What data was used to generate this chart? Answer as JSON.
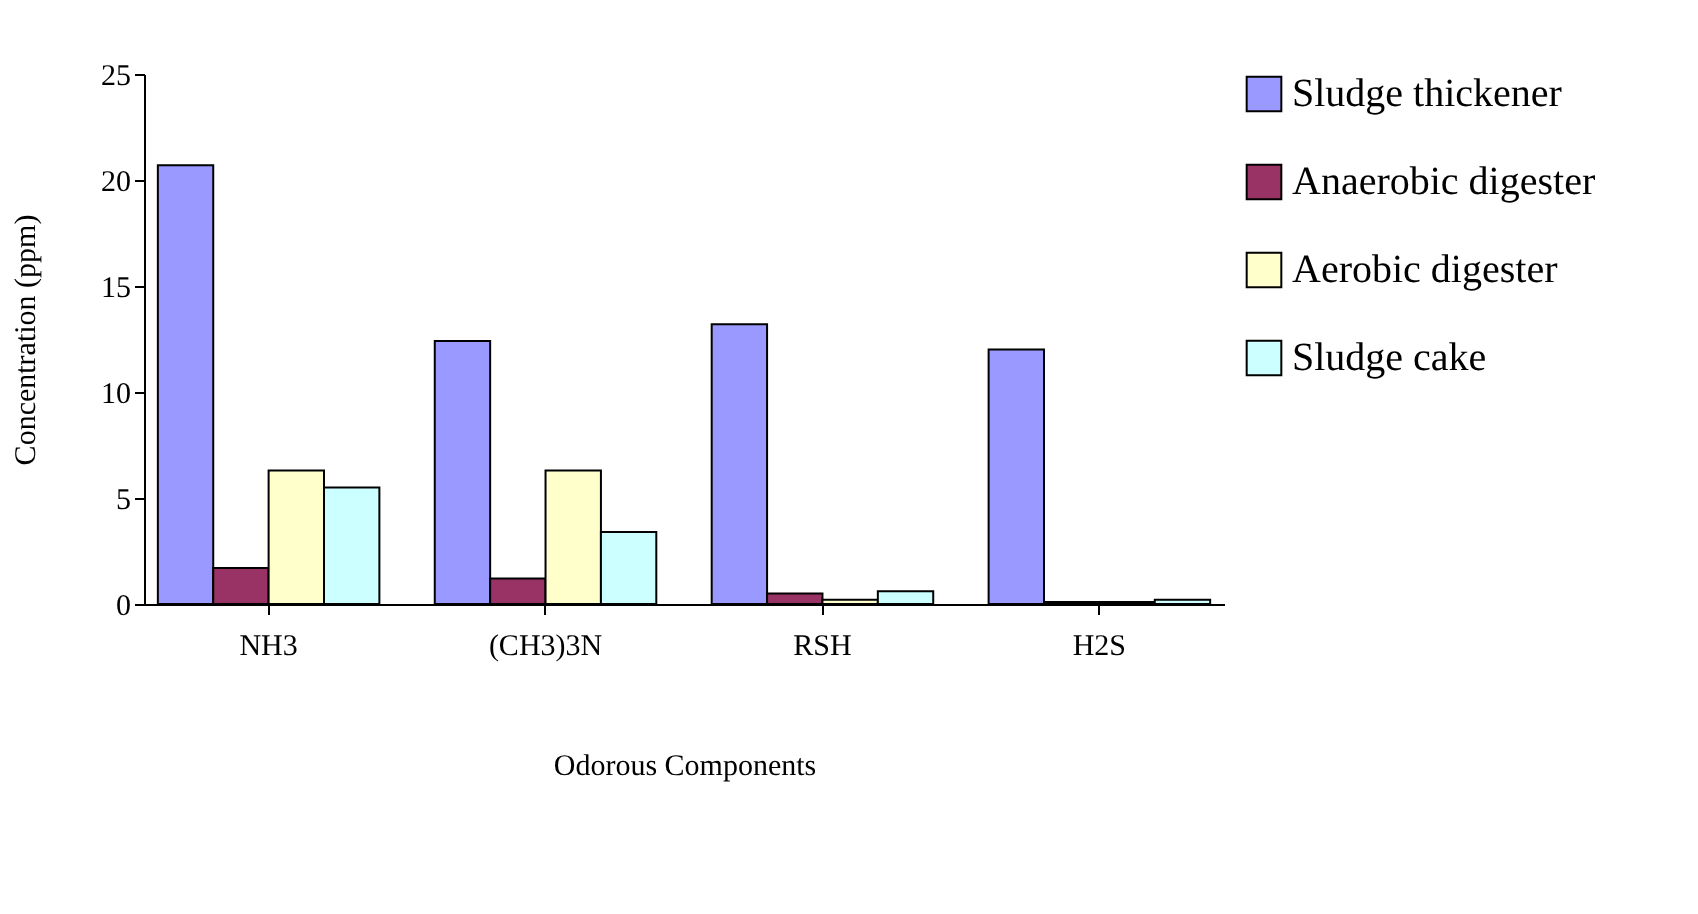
{
  "chart_data": {
    "type": "bar",
    "xlabel": "Odorous Components",
    "ylabel": "Concentration (ppm)",
    "categories": [
      "NH3",
      "(CH3)3N",
      "RSH",
      "H2S"
    ],
    "series": [
      {
        "name": "Sludge thickener",
        "color": "#9999ff",
        "values": [
          20.7,
          12.4,
          13.2,
          12.0
        ]
      },
      {
        "name": "Anaerobic digester",
        "color": "#993366",
        "values": [
          1.7,
          1.2,
          0.5,
          0.1
        ]
      },
      {
        "name": "Aerobic digester",
        "color": "#ffffcc",
        "values": [
          6.3,
          6.3,
          0.2,
          0.1
        ]
      },
      {
        "name": "Sludge cake",
        "color": "#ccffff",
        "values": [
          5.5,
          3.4,
          0.6,
          0.2
        ]
      }
    ],
    "ylim": [
      0,
      25
    ],
    "yticks": [
      0,
      5,
      10,
      15,
      20,
      25
    ],
    "grid": false,
    "legend": "top right"
  }
}
